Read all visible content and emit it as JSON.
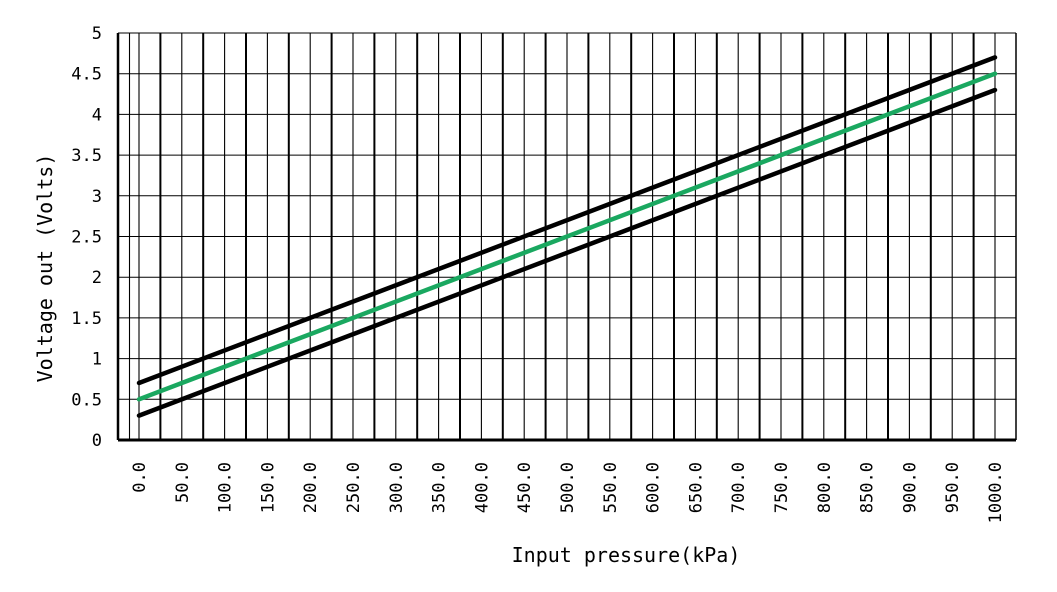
{
  "chart_data": {
    "type": "line",
    "title": "",
    "xlabel": "Input pressure(kPa)",
    "ylabel": "Voltage out (Volts)",
    "xlim": [
      0,
      1000
    ],
    "ylim": [
      0,
      5
    ],
    "x_ticks": [
      "0.0",
      "50.0",
      "100.0",
      "150.0",
      "200.0",
      "250.0",
      "300.0",
      "350.0",
      "400.0",
      "450.0",
      "500.0",
      "550.0",
      "600.0",
      "650.0",
      "700.0",
      "750.0",
      "800.0",
      "850.0",
      "900.0",
      "950.0",
      "1000.0"
    ],
    "y_ticks": [
      "0",
      "0.5",
      "1",
      "1.5",
      "2",
      "2.5",
      "3",
      "3.5",
      "4",
      "4.5",
      "5"
    ],
    "grid": true,
    "legend": "none",
    "series": [
      {
        "color": "#000000",
        "x": [
          0,
          1000
        ],
        "y": [
          0.7,
          4.7
        ]
      },
      {
        "color": "#1aa860",
        "x": [
          0,
          1000
        ],
        "y": [
          0.5,
          4.5
        ]
      },
      {
        "color": "#000000",
        "x": [
          0,
          1000
        ],
        "y": [
          0.3,
          4.3
        ]
      }
    ]
  }
}
